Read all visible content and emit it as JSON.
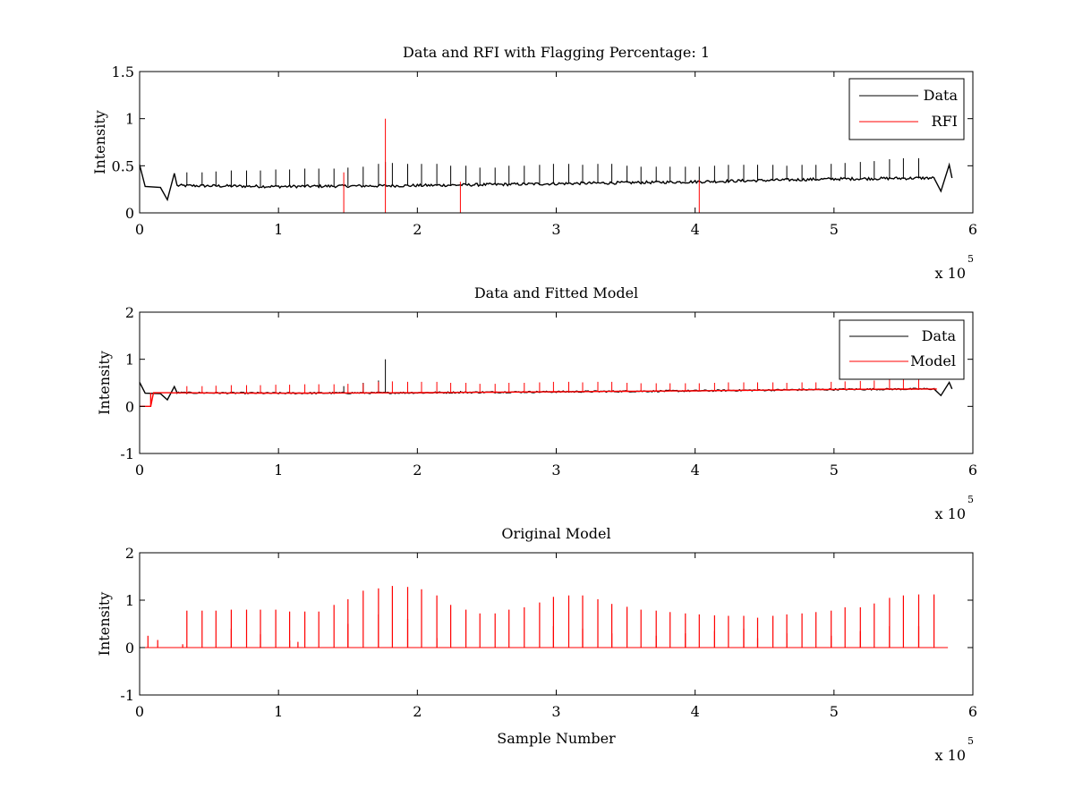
{
  "figure": {
    "background": "#ffffff",
    "colors": {
      "data": "#000000",
      "rfi": "#ff0000",
      "model": "#ff0000",
      "axes": "#000000"
    }
  },
  "chart_data": [
    {
      "type": "line",
      "title": "Data and RFI with Flagging Percentage: 1",
      "xlabel": "",
      "ylabel": "Intensity",
      "xlim": [
        0,
        6
      ],
      "ylim": [
        0,
        1.5
      ],
      "x_unit_multiplier": "x 10",
      "x_unit_exponent": "5",
      "xticks": [
        0,
        1,
        2,
        3,
        4,
        5,
        6
      ],
      "xtick_labels": [
        "0",
        "1",
        "2",
        "3",
        "4",
        "5",
        "6"
      ],
      "yticks": [
        0,
        0.5,
        1,
        1.5
      ],
      "ytick_labels": [
        "0",
        "0.5",
        "1",
        "1.5"
      ],
      "legend": {
        "position": "top-right",
        "entries": [
          {
            "label": "Data",
            "color": "#000000"
          },
          {
            "label": "RFI",
            "color": "#ff0000"
          }
        ]
      },
      "series": [
        {
          "name": "Data",
          "color": "#000000",
          "baseline": [
            [
              0,
              0.28
            ],
            [
              0.25,
              0.29
            ],
            [
              1,
              0.28
            ],
            [
              2,
              0.29
            ],
            [
              3,
              0.31
            ],
            [
              4,
              0.33
            ],
            [
              5,
              0.36
            ],
            [
              5.7,
              0.37
            ]
          ],
          "dips": [
            [
              0.0,
              0.51
            ],
            [
              0.04,
              0.28
            ],
            [
              0.15,
              0.27
            ],
            [
              0.2,
              0.14
            ],
            [
              0.25,
              0.42
            ],
            [
              0.27,
              0.29
            ],
            [
              5.72,
              0.37
            ],
            [
              5.77,
              0.23
            ],
            [
              5.83,
              0.51
            ],
            [
              5.85,
              0.37
            ]
          ],
          "spikes": [
            [
              0.34,
              0.43
            ],
            [
              0.45,
              0.43
            ],
            [
              0.55,
              0.44
            ],
            [
              0.66,
              0.45
            ],
            [
              0.77,
              0.45
            ],
            [
              0.87,
              0.45
            ],
            [
              0.98,
              0.46
            ],
            [
              1.08,
              0.46
            ],
            [
              1.19,
              0.47
            ],
            [
              1.29,
              0.47
            ],
            [
              1.4,
              0.47
            ],
            [
              1.5,
              0.48
            ],
            [
              1.61,
              0.49
            ],
            [
              1.72,
              0.52
            ],
            [
              1.77,
              0.54
            ],
            [
              1.82,
              0.53
            ],
            [
              1.93,
              0.52
            ],
            [
              2.03,
              0.52
            ],
            [
              2.14,
              0.52
            ],
            [
              2.24,
              0.5
            ],
            [
              2.35,
              0.5
            ],
            [
              2.45,
              0.48
            ],
            [
              2.56,
              0.48
            ],
            [
              2.66,
              0.5
            ],
            [
              2.77,
              0.5
            ],
            [
              2.88,
              0.51
            ],
            [
              2.98,
              0.52
            ],
            [
              3.09,
              0.52
            ],
            [
              3.19,
              0.51
            ],
            [
              3.3,
              0.52
            ],
            [
              3.4,
              0.52
            ],
            [
              3.51,
              0.5
            ],
            [
              3.61,
              0.49
            ],
            [
              3.72,
              0.49
            ],
            [
              3.82,
              0.49
            ],
            [
              3.93,
              0.49
            ],
            [
              4.03,
              0.49
            ],
            [
              4.14,
              0.5
            ],
            [
              4.24,
              0.51
            ],
            [
              4.35,
              0.51
            ],
            [
              4.45,
              0.51
            ],
            [
              4.56,
              0.51
            ],
            [
              4.66,
              0.5
            ],
            [
              4.77,
              0.51
            ],
            [
              4.87,
              0.51
            ],
            [
              4.98,
              0.52
            ],
            [
              5.08,
              0.53
            ],
            [
              5.19,
              0.54
            ],
            [
              5.29,
              0.55
            ],
            [
              5.4,
              0.57
            ],
            [
              5.5,
              0.58
            ],
            [
              5.61,
              0.58
            ]
          ]
        },
        {
          "name": "RFI",
          "color": "#ff0000",
          "spikes": [
            [
              1.47,
              0.43
            ],
            [
              1.77,
              1.0
            ],
            [
              2.31,
              0.33
            ],
            [
              4.03,
              0.35
            ]
          ]
        }
      ]
    },
    {
      "type": "line",
      "title": "Data and Fitted Model",
      "xlabel": "",
      "ylabel": "Intensity",
      "xlim": [
        0,
        6
      ],
      "ylim": [
        -1,
        2
      ],
      "x_unit_multiplier": "x 10",
      "x_unit_exponent": "5",
      "xticks": [
        0,
        1,
        2,
        3,
        4,
        5,
        6
      ],
      "xtick_labels": [
        "0",
        "1",
        "2",
        "3",
        "4",
        "5",
        "6"
      ],
      "yticks": [
        -1,
        0,
        1,
        2
      ],
      "ytick_labels": [
        "-1",
        "0",
        "1",
        "2"
      ],
      "legend": {
        "position": "top-right",
        "entries": [
          {
            "label": "Data",
            "color": "#000000"
          },
          {
            "label": "Model",
            "color": "#ff0000"
          }
        ]
      },
      "series": [
        {
          "name": "Data",
          "color": "#000000",
          "baseline": [
            [
              0,
              0.28
            ],
            [
              0.25,
              0.29
            ],
            [
              1,
              0.28
            ],
            [
              2,
              0.29
            ],
            [
              3,
              0.31
            ],
            [
              4,
              0.33
            ],
            [
              5,
              0.36
            ],
            [
              5.7,
              0.37
            ]
          ],
          "dips": [
            [
              0.0,
              0.51
            ],
            [
              0.04,
              0.28
            ],
            [
              0.15,
              0.27
            ],
            [
              0.2,
              0.14
            ],
            [
              0.25,
              0.42
            ],
            [
              0.27,
              0.29
            ],
            [
              5.72,
              0.37
            ],
            [
              5.77,
              0.23
            ],
            [
              5.83,
              0.51
            ],
            [
              5.85,
              0.37
            ]
          ],
          "spikes": [
            [
              1.47,
              0.43
            ],
            [
              1.61,
              0.5
            ],
            [
              1.72,
              0.55
            ],
            [
              1.77,
              1.0
            ],
            [
              2.31,
              0.33
            ]
          ]
        },
        {
          "name": "Model",
          "color": "#ff0000",
          "baseline": [
            [
              0.0,
              0.0
            ],
            [
              0.08,
              0.0
            ],
            [
              0.08,
              0.29
            ],
            [
              1,
              0.28
            ],
            [
              2,
              0.29
            ],
            [
              3,
              0.31
            ],
            [
              4,
              0.33
            ],
            [
              5,
              0.36
            ],
            [
              5.75,
              0.37
            ]
          ],
          "spikes": [
            [
              0.34,
              0.43
            ],
            [
              0.45,
              0.43
            ],
            [
              0.55,
              0.44
            ],
            [
              0.66,
              0.45
            ],
            [
              0.77,
              0.45
            ],
            [
              0.87,
              0.45
            ],
            [
              0.98,
              0.46
            ],
            [
              1.08,
              0.46
            ],
            [
              1.19,
              0.47
            ],
            [
              1.29,
              0.47
            ],
            [
              1.4,
              0.47
            ],
            [
              1.5,
              0.48
            ],
            [
              1.61,
              0.49
            ],
            [
              1.72,
              0.52
            ],
            [
              1.82,
              0.53
            ],
            [
              1.93,
              0.52
            ],
            [
              2.03,
              0.52
            ],
            [
              2.14,
              0.52
            ],
            [
              2.24,
              0.5
            ],
            [
              2.35,
              0.5
            ],
            [
              2.45,
              0.48
            ],
            [
              2.56,
              0.48
            ],
            [
              2.66,
              0.5
            ],
            [
              2.77,
              0.5
            ],
            [
              2.88,
              0.51
            ],
            [
              2.98,
              0.52
            ],
            [
              3.09,
              0.52
            ],
            [
              3.19,
              0.51
            ],
            [
              3.3,
              0.52
            ],
            [
              3.4,
              0.52
            ],
            [
              3.51,
              0.5
            ],
            [
              3.61,
              0.49
            ],
            [
              3.72,
              0.49
            ],
            [
              3.82,
              0.49
            ],
            [
              3.93,
              0.49
            ],
            [
              4.03,
              0.49
            ],
            [
              4.14,
              0.5
            ],
            [
              4.24,
              0.51
            ],
            [
              4.35,
              0.51
            ],
            [
              4.45,
              0.51
            ],
            [
              4.56,
              0.51
            ],
            [
              4.66,
              0.5
            ],
            [
              4.77,
              0.51
            ],
            [
              4.87,
              0.51
            ],
            [
              4.98,
              0.52
            ],
            [
              5.08,
              0.53
            ],
            [
              5.19,
              0.54
            ],
            [
              5.29,
              0.55
            ],
            [
              5.4,
              0.57
            ],
            [
              5.5,
              0.58
            ],
            [
              5.61,
              0.58
            ]
          ]
        }
      ]
    },
    {
      "type": "line",
      "title": "Original Model",
      "xlabel": "Sample Number",
      "ylabel": "Intensity",
      "xlim": [
        0,
        6
      ],
      "ylim": [
        -1,
        2
      ],
      "x_unit_multiplier": "x 10",
      "x_unit_exponent": "5",
      "xticks": [
        0,
        1,
        2,
        3,
        4,
        5,
        6
      ],
      "xtick_labels": [
        "0",
        "1",
        "2",
        "3",
        "4",
        "5",
        "6"
      ],
      "yticks": [
        -1,
        0,
        1,
        2
      ],
      "ytick_labels": [
        "-1",
        "0",
        "1",
        "2"
      ],
      "legend": null,
      "series": [
        {
          "name": "",
          "color": "#ff0000",
          "baseline": [
            [
              0.02,
              0.0
            ],
            [
              5.82,
              0.0
            ]
          ],
          "spikes": [
            [
              0.06,
              0.25
            ],
            [
              0.13,
              0.16
            ],
            [
              0.31,
              0.07
            ],
            [
              0.34,
              0.78
            ],
            [
              0.45,
              0.78
            ],
            [
              0.55,
              0.78
            ],
            [
              0.66,
              0.8
            ],
            [
              0.77,
              0.8
            ],
            [
              0.87,
              0.8
            ],
            [
              0.98,
              0.8
            ],
            [
              1.08,
              0.76
            ],
            [
              1.19,
              0.76
            ],
            [
              1.29,
              0.76
            ],
            [
              1.4,
              0.9
            ],
            [
              1.5,
              1.02
            ],
            [
              1.61,
              1.2
            ],
            [
              1.72,
              1.25
            ],
            [
              1.82,
              1.3
            ],
            [
              1.93,
              1.28
            ],
            [
              2.03,
              1.23
            ],
            [
              2.14,
              1.1
            ],
            [
              2.24,
              0.9
            ],
            [
              2.35,
              0.8
            ],
            [
              2.45,
              0.72
            ],
            [
              2.56,
              0.72
            ],
            [
              2.66,
              0.8
            ],
            [
              2.77,
              0.85
            ],
            [
              2.88,
              0.95
            ],
            [
              2.98,
              1.07
            ],
            [
              3.09,
              1.1
            ],
            [
              3.19,
              1.1
            ],
            [
              3.3,
              1.02
            ],
            [
              3.4,
              0.92
            ],
            [
              3.51,
              0.86
            ],
            [
              3.61,
              0.8
            ],
            [
              3.72,
              0.78
            ],
            [
              3.82,
              0.75
            ],
            [
              3.93,
              0.72
            ],
            [
              4.03,
              0.7
            ],
            [
              4.14,
              0.68
            ],
            [
              4.24,
              0.67
            ],
            [
              4.35,
              0.67
            ],
            [
              4.45,
              0.63
            ],
            [
              4.56,
              0.67
            ],
            [
              4.66,
              0.7
            ],
            [
              4.77,
              0.72
            ],
            [
              4.87,
              0.75
            ],
            [
              4.98,
              0.78
            ],
            [
              5.08,
              0.85
            ],
            [
              5.19,
              0.85
            ],
            [
              5.29,
              0.93
            ],
            [
              5.4,
              1.05
            ],
            [
              5.5,
              1.1
            ],
            [
              5.61,
              1.12
            ],
            [
              5.72,
              1.12
            ]
          ],
          "small_spikes": [
            [
              0.66,
              0.4
            ],
            [
              0.87,
              0.28
            ],
            [
              1.08,
              0.15
            ],
            [
              1.14,
              0.12
            ],
            [
              1.5,
              0.5
            ],
            [
              1.72,
              0.7
            ],
            [
              1.93,
              0.6
            ],
            [
              2.14,
              0.2
            ],
            [
              2.98,
              0.45
            ],
            [
              3.19,
              0.4
            ],
            [
              3.4,
              0.3
            ],
            [
              3.72,
              0.25
            ],
            [
              3.93,
              0.3
            ],
            [
              4.14,
              0.35
            ],
            [
              4.35,
              0.4
            ],
            [
              4.45,
              0.2
            ],
            [
              4.66,
              0.3
            ],
            [
              4.98,
              0.25
            ],
            [
              5.19,
              0.35
            ],
            [
              5.4,
              0.45
            ],
            [
              5.61,
              0.45
            ]
          ]
        }
      ]
    }
  ]
}
